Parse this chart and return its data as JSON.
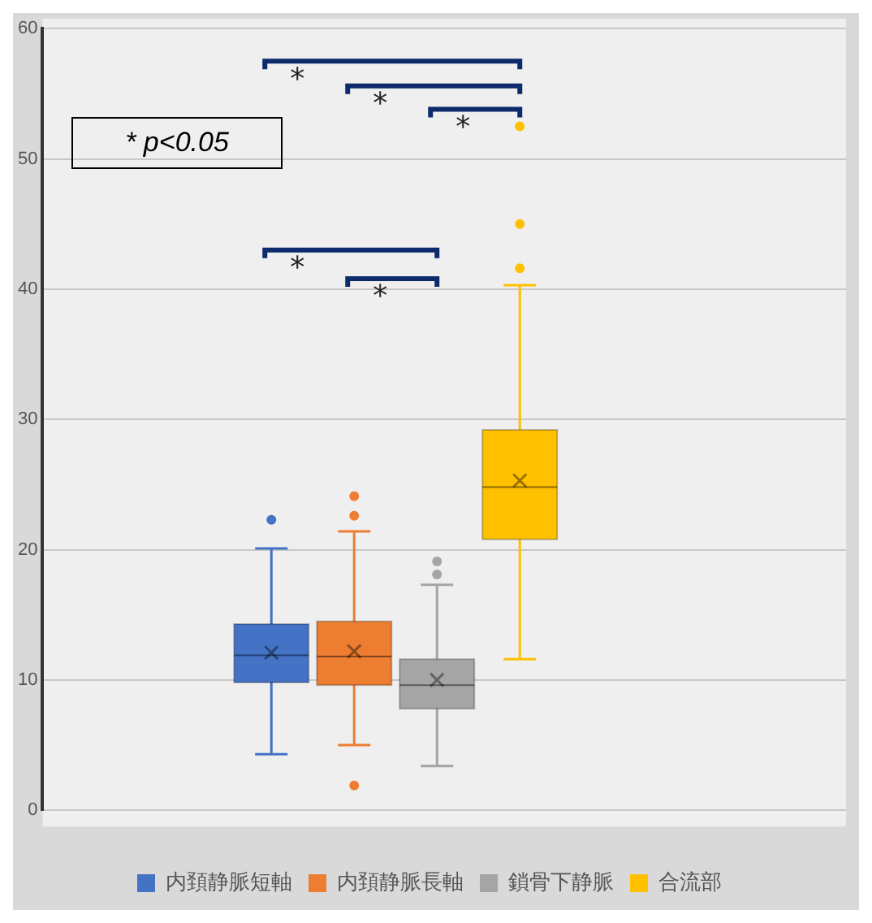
{
  "chart_data": {
    "type": "box",
    "categories": [
      null
    ],
    "series": [
      {
        "name": "内頚静脈短軸",
        "color": "#4472c4",
        "boxes": [
          {
            "low": 4.3,
            "q1": 9.8,
            "median": 11.9,
            "q3": 14.3,
            "high": 20.1,
            "mean": 12.1,
            "outliers": [
              22.3
            ]
          }
        ]
      },
      {
        "name": "内頚静脈長軸",
        "color": "#ed7d31",
        "boxes": [
          {
            "low": 5.0,
            "q1": 9.6,
            "median": 11.8,
            "q3": 14.5,
            "high": 21.4,
            "mean": 12.2,
            "outliers": [
              1.9,
              22.6,
              24.1
            ]
          }
        ]
      },
      {
        "name": "鎖骨下静脈",
        "color": "#a5a5a5",
        "boxes": [
          {
            "low": 3.4,
            "q1": 7.8,
            "median": 9.6,
            "q3": 11.6,
            "high": 17.3,
            "mean": 10.0,
            "outliers": [
              18.1,
              19.1
            ]
          }
        ]
      },
      {
        "name": "合流部",
        "color": "#ffc000",
        "boxes": [
          {
            "low": 11.6,
            "q1": 20.8,
            "median": 24.8,
            "q3": 29.2,
            "high": 40.3,
            "mean": 25.3,
            "outliers": [
              41.6,
              45.0,
              52.5
            ]
          }
        ]
      }
    ],
    "ylim": [
      0,
      60
    ],
    "yticks": [
      0,
      10,
      20,
      30,
      40,
      50,
      60
    ],
    "grid": "y",
    "legend": "bottom",
    "marker": "circle",
    "annotations": [
      "* p<0.05",
      "*",
      "*",
      "*",
      "*",
      "*"
    ]
  }
}
